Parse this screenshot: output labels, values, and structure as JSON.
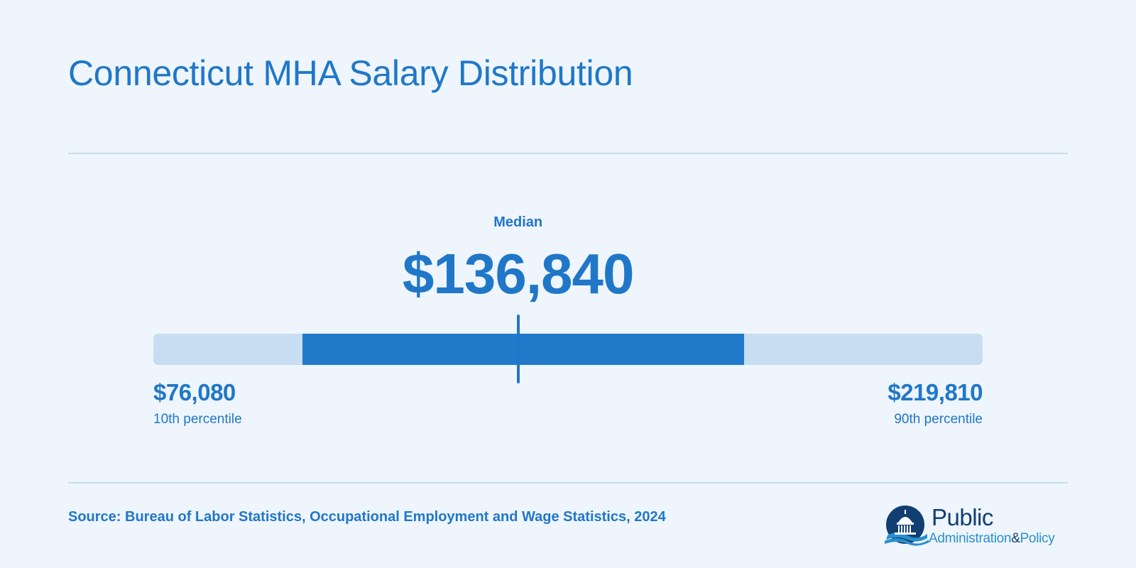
{
  "title": "Connecticut MHA Salary Distribution",
  "chart_data": {
    "type": "range",
    "min": 56000,
    "max": 239800,
    "iqr_low": 89000,
    "iqr_high": 186850,
    "median": {
      "label": "Median",
      "value": 136840,
      "display": "$136,840"
    },
    "p10": {
      "label": "10th percentile",
      "value": 76080,
      "display": "$76,080"
    },
    "p90": {
      "label": "90th percentile",
      "value": 219810,
      "display": "$219,810"
    }
  },
  "source": "Source: Bureau of Labor Statistics, Occupational Employment and Wage Statistics, 2024",
  "logo": {
    "line1": "Public",
    "line2a": "Administration",
    "amp": "&",
    "line2b": "Policy"
  },
  "colors": {
    "background": "#eef5fc",
    "accent": "#2077c8",
    "track": "#c7ddf1",
    "rule": "#c4dcf0",
    "logo_navy": "#123f72"
  }
}
